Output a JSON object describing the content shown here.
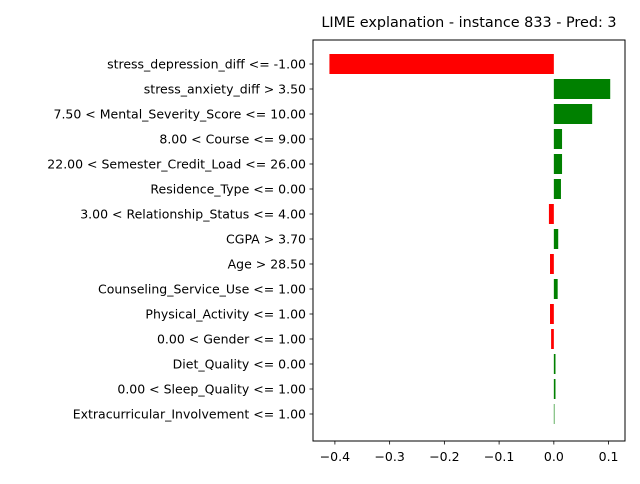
{
  "chart_data": {
    "type": "bar",
    "orientation": "horizontal",
    "title": "LIME explanation - instance 833 - Pred: 3",
    "xlabel": "",
    "ylabel": "",
    "xlim": [
      -0.44,
      0.13
    ],
    "xticks": [
      -0.4,
      -0.3,
      -0.2,
      -0.1,
      0.0,
      0.1
    ],
    "xtick_labels": [
      "−0.4",
      "−0.3",
      "−0.2",
      "−0.1",
      "0.0",
      "0.1"
    ],
    "grid": false,
    "legend": "none",
    "colors": {
      "positive": "#008000",
      "negative": "#ff0000"
    },
    "categories": [
      "stress_depression_diff <= -1.00",
      "stress_anxiety_diff > 3.50",
      "7.50 < Mental_Severity_Score <= 10.00",
      "8.00 < Course <= 9.00",
      "22.00 < Semester_Credit_Load <= 26.00",
      "Residence_Type <= 0.00",
      "3.00 < Relationship_Status <= 4.00",
      "CGPA > 3.70",
      "Age > 28.50",
      "Counseling_Service_Use <= 1.00",
      "Physical_Activity <= 1.00",
      "0.00 < Gender <= 1.00",
      "Diet_Quality <= 0.00",
      "0.00 < Sleep_Quality <= 1.00",
      "Extracurricular_Involvement <= 1.00"
    ],
    "values": [
      -0.41,
      0.103,
      0.07,
      0.015,
      0.015,
      0.013,
      -0.009,
      0.008,
      -0.007,
      0.007,
      -0.007,
      -0.005,
      0.003,
      0.003,
      0.0005
    ]
  }
}
